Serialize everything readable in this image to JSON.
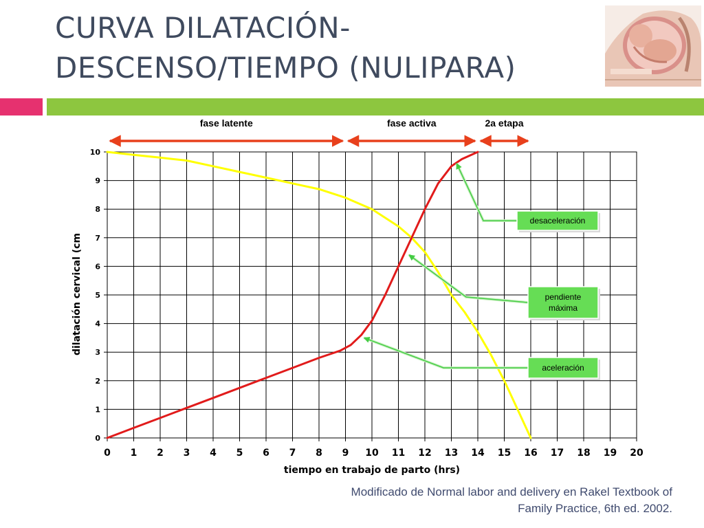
{
  "title": {
    "line1": "CURVA DILATACIÓN-",
    "line2": "DESCENSO/TIEMPO (NULIPARA)"
  },
  "source": {
    "line1": "Modificado de Normal labor and delivery en Rakel Textbook of",
    "line2": "Family Practice, 6th ed. 2002."
  },
  "colors": {
    "title": "#3f4a5e",
    "accent_pink": "#e6316f",
    "accent_green": "#8dc63f",
    "dilation": "#e11b1b",
    "descent": "#ffff00",
    "phase_arrows": "#e8401c",
    "callout_box": "#66dd55",
    "callout_arrow": "#44cc44"
  },
  "chart_data": {
    "type": "line",
    "xlabel": "tiempo en trabajo de parto (hrs)",
    "ylabel": "dilatación cervical (cm",
    "xlim": [
      0,
      20
    ],
    "ylim": [
      0,
      10
    ],
    "x_ticks": [
      "0",
      "1",
      "2",
      "3",
      "4",
      "5",
      "6",
      "7",
      "8",
      "9",
      "10",
      "11",
      "12",
      "13",
      "14",
      "15",
      "16",
      "17",
      "18",
      "19",
      "20"
    ],
    "y_ticks": [
      "0",
      "1",
      "2",
      "3",
      "4",
      "5",
      "6",
      "7",
      "8",
      "9",
      "10"
    ],
    "grid": true,
    "series": [
      {
        "key": "dilation",
        "color": "#e11b1b",
        "points": [
          [
            0,
            0
          ],
          [
            1,
            0.35
          ],
          [
            2,
            0.7
          ],
          [
            3,
            1.05
          ],
          [
            4,
            1.4
          ],
          [
            5,
            1.75
          ],
          [
            6,
            2.1
          ],
          [
            7,
            2.45
          ],
          [
            8,
            2.8
          ],
          [
            8.8,
            3.05
          ],
          [
            9.2,
            3.25
          ],
          [
            9.6,
            3.6
          ],
          [
            10,
            4.1
          ],
          [
            10.5,
            5.0
          ],
          [
            11,
            6.0
          ],
          [
            11.5,
            7.0
          ],
          [
            12,
            8.0
          ],
          [
            12.5,
            8.9
          ],
          [
            13,
            9.5
          ],
          [
            13.4,
            9.75
          ],
          [
            14,
            10
          ]
        ]
      },
      {
        "key": "descent",
        "color": "#ffff00",
        "points": [
          [
            0,
            10
          ],
          [
            1,
            9.9
          ],
          [
            2,
            9.8
          ],
          [
            3,
            9.7
          ],
          [
            4,
            9.5
          ],
          [
            5,
            9.3
          ],
          [
            6,
            9.1
          ],
          [
            7,
            8.9
          ],
          [
            8,
            8.7
          ],
          [
            9,
            8.4
          ],
          [
            10,
            8.0
          ],
          [
            11,
            7.4
          ],
          [
            11.5,
            7.0
          ],
          [
            12,
            6.5
          ],
          [
            12.5,
            5.8
          ],
          [
            13,
            5.0
          ],
          [
            13.5,
            4.4
          ],
          [
            14,
            3.7
          ],
          [
            14.5,
            2.9
          ],
          [
            15,
            2.0
          ],
          [
            15.5,
            1.0
          ],
          [
            16,
            0
          ]
        ]
      }
    ],
    "phases": [
      {
        "label": "fase latente",
        "x_start": 0,
        "x_end": 9
      },
      {
        "label": "fase activa",
        "x_start": 9,
        "x_end": 14
      },
      {
        "label": "2a etapa",
        "x_start": 14,
        "x_end": 16
      }
    ],
    "annotations": [
      {
        "key": "deceleration",
        "label": "desaceleración",
        "target": [
          13.2,
          9.6
        ]
      },
      {
        "key": "max-slope",
        "label": "pendiente máxima",
        "target": [
          11.4,
          6.4
        ]
      },
      {
        "key": "acceleration",
        "label": "aceleración",
        "target": [
          9.7,
          3.5
        ]
      }
    ]
  }
}
